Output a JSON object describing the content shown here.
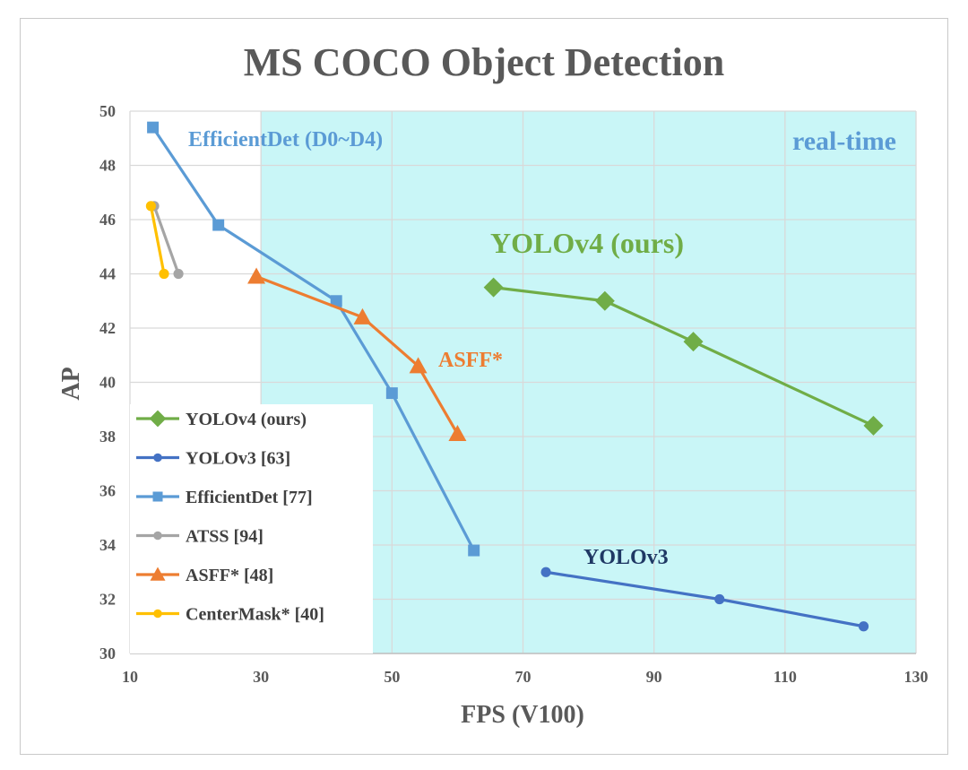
{
  "chart_data": {
    "type": "line",
    "title": "MS COCO Object Detection",
    "xlabel": "FPS (V100)",
    "ylabel": "AP",
    "xlim": [
      10,
      130
    ],
    "ylim": [
      30,
      50
    ],
    "xticks": [
      10,
      30,
      50,
      70,
      90,
      110,
      130
    ],
    "yticks": [
      30,
      32,
      34,
      36,
      38,
      40,
      42,
      44,
      46,
      48,
      50
    ],
    "grid": true,
    "shaded_region": {
      "label": "real-time",
      "x_from": 30,
      "color": "#c9f6f7"
    },
    "legend_position": "bottom-left",
    "series": [
      {
        "name": "YOLOv4 (ours)",
        "color": "#70ad47",
        "marker": "diamond",
        "x": [
          65.5,
          82.5,
          96,
          123.5
        ],
        "y": [
          43.5,
          43.0,
          41.5,
          38.4
        ]
      },
      {
        "name": "YOLOv3 [63]",
        "color": "#4472c4",
        "marker": "circle",
        "x": [
          73.5,
          100,
          122
        ],
        "y": [
          33.0,
          32.0,
          31.0
        ]
      },
      {
        "name": "EfficientDet [77]",
        "color": "#5b9bd5",
        "marker": "square",
        "x": [
          13.5,
          23.5,
          41.5,
          50,
          62.5
        ],
        "y": [
          49.4,
          45.8,
          43.0,
          39.6,
          33.8
        ]
      },
      {
        "name": "ATSS [94]",
        "color": "#a5a5a5",
        "marker": "circle",
        "x": [
          13.7,
          17.4
        ],
        "y": [
          46.5,
          44.0
        ]
      },
      {
        "name": "ASFF* [48]",
        "color": "#ed7d31",
        "marker": "triangle",
        "x": [
          29.3,
          45.5,
          54,
          60
        ],
        "y": [
          43.9,
          42.4,
          40.6,
          38.1
        ]
      },
      {
        "name": "CenterMask* [40]",
        "color": "#ffc000",
        "marker": "circle",
        "x": [
          13.2,
          15.2
        ],
        "y": [
          46.5,
          44.0
        ]
      }
    ],
    "annotations": [
      {
        "text": "EfficientDet (D0~D4)",
        "color": "#5b9bd5",
        "size": 24
      },
      {
        "text": "real-time",
        "color": "#5b9bd5",
        "size": 30
      },
      {
        "text": "YOLOv4 (ours)",
        "color": "#70ad47",
        "size": 32
      },
      {
        "text": "ASFF*",
        "color": "#ed7d31",
        "size": 24
      },
      {
        "text": "YOLOv3",
        "color": "#1f3864",
        "size": 24
      }
    ]
  }
}
